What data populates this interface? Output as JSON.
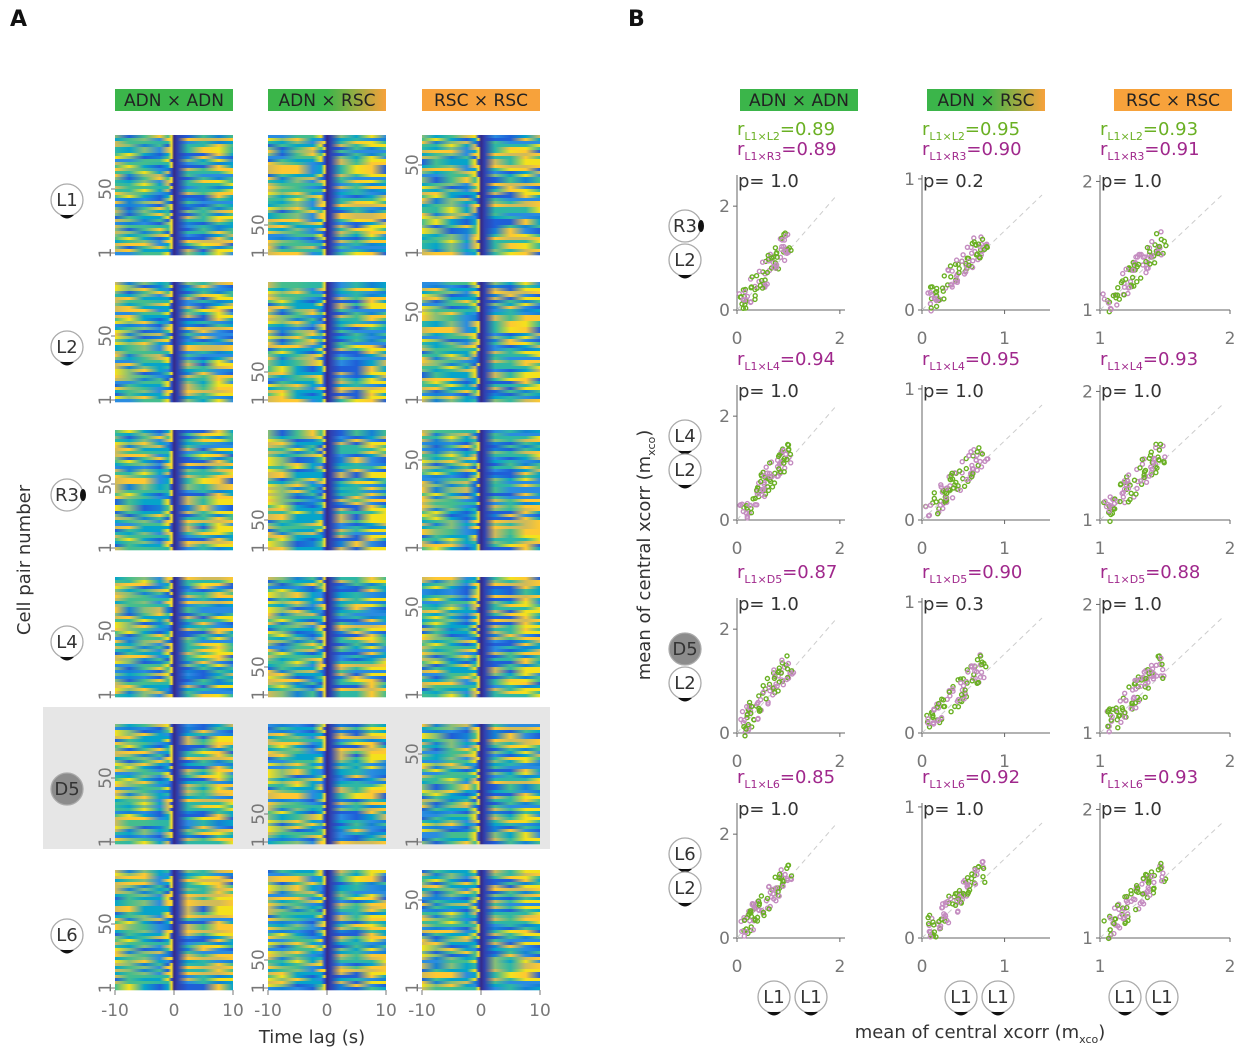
{
  "panel_a": {
    "label": "A",
    "column_headers": [
      "ADN × ADN",
      "ADN × RSC",
      "RSC × RSC"
    ],
    "row_labels": [
      "L1",
      "L2",
      "R3",
      "L4",
      "D5",
      "L6"
    ],
    "heatmap_yticks": [
      1,
      50
    ],
    "xticks": [
      -10,
      0,
      10
    ],
    "y_label": "Cell pair number",
    "x_label": "Time lag (s)"
  },
  "panel_b": {
    "label": "B",
    "column_headers": [
      "ADN × ADN",
      "ADN × RSC",
      "RSC × RSC"
    ],
    "row_icons": [
      [
        "R3",
        "L2"
      ],
      [
        "L4",
        "L2"
      ],
      [
        "D5",
        "L2"
      ],
      [
        "L6",
        "L2"
      ]
    ],
    "axes": [
      {
        "xlim": [
          0,
          2.1
        ],
        "ylim": [
          0,
          2.6
        ],
        "xticks": [
          0,
          2
        ],
        "yticks": [
          0,
          2
        ]
      },
      {
        "xlim": [
          0,
          1.55
        ],
        "ylim": [
          0,
          1.03
        ],
        "xticks": [
          0,
          1
        ],
        "yticks": [
          0,
          1
        ]
      },
      {
        "xlim": [
          1,
          2
        ],
        "ylim": [
          1,
          2.05
        ],
        "xticks": [
          1,
          2
        ],
        "yticks": [
          1,
          2
        ]
      }
    ],
    "stats": [
      [
        {
          "lines": [
            {
              "r": "r",
              "sub": "L1×L2",
              "value": "=0.89",
              "color": "#6ab023"
            },
            {
              "r": "r",
              "sub": "L1×R3",
              "value": "=0.89",
              "color": "#a0288c"
            }
          ],
          "p": "p= 1.0"
        },
        {
          "lines": [
            {
              "r": "r",
              "sub": "L1×L2",
              "value": "=0.95",
              "color": "#6ab023"
            },
            {
              "r": "r",
              "sub": "L1×R3",
              "value": "=0.90",
              "color": "#a0288c"
            }
          ],
          "p": "p= 0.2"
        },
        {
          "lines": [
            {
              "r": "r",
              "sub": "L1×L2",
              "value": "=0.93",
              "color": "#6ab023"
            },
            {
              "r": "r",
              "sub": "L1×R3",
              "value": "=0.91",
              "color": "#a0288c"
            }
          ],
          "p": "p= 1.0"
        }
      ],
      [
        {
          "lines": [
            {
              "r": "r",
              "sub": "L1×L4",
              "value": "=0.94",
              "color": "#a0288c"
            }
          ],
          "p": "p= 1.0"
        },
        {
          "lines": [
            {
              "r": "r",
              "sub": "L1×L4",
              "value": "=0.95",
              "color": "#a0288c"
            }
          ],
          "p": "p= 1.0"
        },
        {
          "lines": [
            {
              "r": "r",
              "sub": "L1×L4",
              "value": "=0.93",
              "color": "#a0288c"
            }
          ],
          "p": "p= 1.0"
        }
      ],
      [
        {
          "lines": [
            {
              "r": "r",
              "sub": "L1×D5",
              "value": "=0.87",
              "color": "#a0288c"
            }
          ],
          "p": "p= 1.0"
        },
        {
          "lines": [
            {
              "r": "r",
              "sub": "L1×D5",
              "value": "=0.90",
              "color": "#a0288c"
            }
          ],
          "p": "p= 0.3"
        },
        {
          "lines": [
            {
              "r": "r",
              "sub": "L1×D5",
              "value": "=0.88",
              "color": "#a0288c"
            }
          ],
          "p": "p= 1.0"
        }
      ],
      [
        {
          "lines": [
            {
              "r": "r",
              "sub": "L1×L6",
              "value": "=0.85",
              "color": "#a0288c"
            }
          ],
          "p": "p= 1.0"
        },
        {
          "lines": [
            {
              "r": "r",
              "sub": "L1×L6",
              "value": "=0.92",
              "color": "#a0288c"
            }
          ],
          "p": "p= 1.0"
        },
        {
          "lines": [
            {
              "r": "r",
              "sub": "L1×L6",
              "value": "=0.93",
              "color": "#a0288c"
            }
          ],
          "p": "p= 1.0"
        }
      ]
    ],
    "x_icons": [
      "L1",
      "L1"
    ],
    "y_label": {
      "text": "mean of central xcorr (m",
      "sub": "xco",
      "end": ")"
    },
    "x_label": {
      "text": "mean of central xcorr (m",
      "sub": "xco",
      "end": ")"
    }
  }
}
